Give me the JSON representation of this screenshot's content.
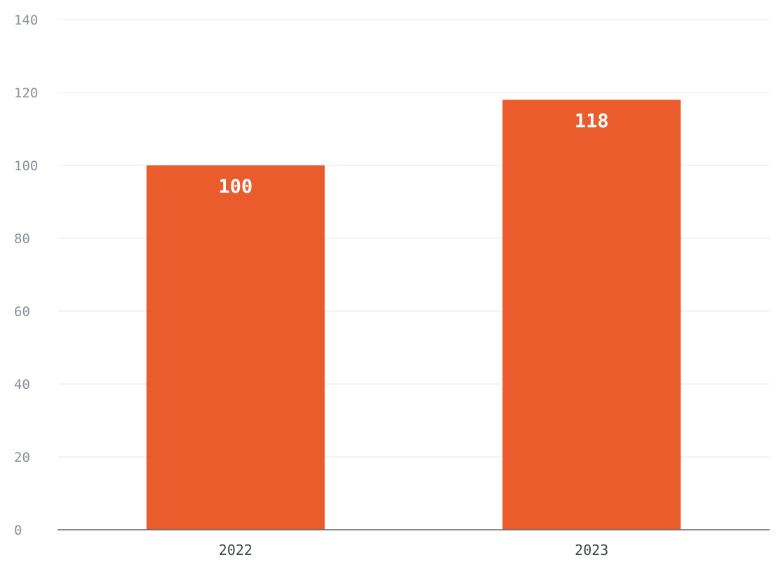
{
  "chart_data": {
    "type": "bar",
    "categories": [
      "2022",
      "2023"
    ],
    "values": [
      100,
      118
    ],
    "data_labels": [
      "100",
      "118"
    ],
    "title": "",
    "xlabel": "",
    "ylabel": "",
    "ylim": [
      0,
      140
    ],
    "y_ticks": [
      "0",
      "20",
      "40",
      "60",
      "80",
      "100",
      "120",
      "140"
    ],
    "grid": true,
    "legend": "none",
    "bar_color": "#ea5c2c"
  }
}
